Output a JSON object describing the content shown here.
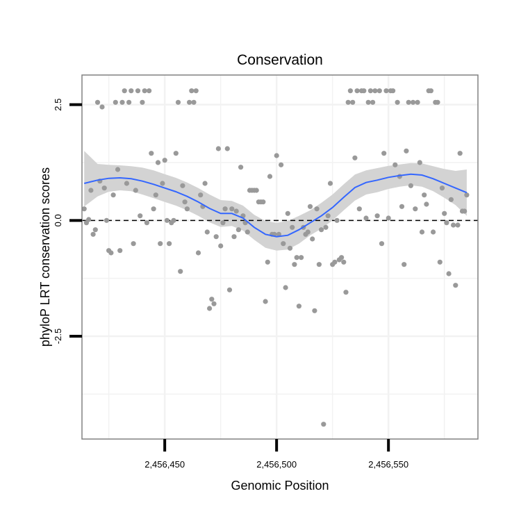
{
  "chart_data": {
    "type": "scatter",
    "title": "Conservation",
    "xlabel": "Genomic Position",
    "ylabel": "phyloP LRT conservation scores",
    "xlim": [
      2456413,
      2456590
    ],
    "ylim": [
      -4.72,
      3.14
    ],
    "x_ticks": [
      2456450,
      2456500,
      2456550
    ],
    "x_tick_labels": [
      "2,456,450",
      "2,456,500",
      "2,456,550"
    ],
    "y_ticks": [
      -2.5,
      0.0,
      2.5
    ],
    "y_tick_labels": [
      "-2.5",
      "0.0",
      "2.5"
    ],
    "x_minor_grid": [
      2456425,
      2456475,
      2456525,
      2456575
    ],
    "y_minor_grid": [
      -3.75,
      -1.25,
      1.25
    ],
    "grid": true,
    "reference_line": {
      "y": 0,
      "style": "dashed",
      "color": "#000000"
    },
    "colors": {
      "points": "#999999",
      "smooth_line": "#3366FF",
      "confidence_band": "#D3D3D3",
      "panel_border": "#808080",
      "grid": "#F2F2F2"
    },
    "points": [
      [
        2456414,
        0.25
      ],
      [
        2456415,
        -0.05
      ],
      [
        2456416,
        0.02
      ],
      [
        2456417,
        0.65
      ],
      [
        2456418,
        -0.3
      ],
      [
        2456419,
        -0.2
      ],
      [
        2456420,
        2.55
      ],
      [
        2456421,
        0.85
      ],
      [
        2456422,
        2.45
      ],
      [
        2456423,
        0.7
      ],
      [
        2456424,
        0.0
      ],
      [
        2456425,
        -0.65
      ],
      [
        2456426,
        -0.7
      ],
      [
        2456427,
        0.55
      ],
      [
        2456428,
        2.55
      ],
      [
        2456429,
        1.1
      ],
      [
        2456430,
        -0.65
      ],
      [
        2456431,
        2.55
      ],
      [
        2456432,
        2.8
      ],
      [
        2456433,
        0.8
      ],
      [
        2456434,
        2.55
      ],
      [
        2456435,
        2.8
      ],
      [
        2456436,
        -0.5
      ],
      [
        2456437,
        0.65
      ],
      [
        2456438,
        2.8
      ],
      [
        2456439,
        0.1
      ],
      [
        2456440,
        2.55
      ],
      [
        2456441,
        2.8
      ],
      [
        2456442,
        -0.05
      ],
      [
        2456443,
        2.8
      ],
      [
        2456444,
        1.45
      ],
      [
        2456445,
        0.25
      ],
      [
        2456446,
        0.55
      ],
      [
        2456447,
        1.25
      ],
      [
        2456448,
        -0.5
      ],
      [
        2456449,
        0.8
      ],
      [
        2456450,
        1.3
      ],
      [
        2456451,
        0.0
      ],
      [
        2456452,
        -0.5
      ],
      [
        2456453,
        -0.05
      ],
      [
        2456454,
        0.0
      ],
      [
        2456455,
        1.45
      ],
      [
        2456456,
        2.55
      ],
      [
        2456457,
        -1.1
      ],
      [
        2456458,
        0.75
      ],
      [
        2456459,
        0.4
      ],
      [
        2456460,
        0.25
      ],
      [
        2456461,
        2.55
      ],
      [
        2456462,
        2.8
      ],
      [
        2456463,
        2.55
      ],
      [
        2456464,
        2.8
      ],
      [
        2456465,
        -0.7
      ],
      [
        2456466,
        0.55
      ],
      [
        2456467,
        0.3
      ],
      [
        2456468,
        0.8
      ],
      [
        2456469,
        -0.25
      ],
      [
        2456470,
        -1.9
      ],
      [
        2456471,
        -1.7
      ],
      [
        2456472,
        -1.8
      ],
      [
        2456473,
        -0.35
      ],
      [
        2456474,
        1.55
      ],
      [
        2456475,
        -0.55
      ],
      [
        2456476,
        -0.05
      ],
      [
        2456477,
        0.25
      ],
      [
        2456478,
        1.55
      ],
      [
        2456479,
        -1.5
      ],
      [
        2456480,
        0.25
      ],
      [
        2456481,
        -0.35
      ],
      [
        2456482,
        0.2
      ],
      [
        2456483,
        -0.2
      ],
      [
        2456484,
        1.15
      ],
      [
        2456485,
        0.1
      ],
      [
        2456486,
        -0.05
      ],
      [
        2456487,
        -0.25
      ],
      [
        2456488,
        0.65
      ],
      [
        2456489,
        0.65
      ],
      [
        2456490,
        0.65
      ],
      [
        2456491,
        0.65
      ],
      [
        2456492,
        0.4
      ],
      [
        2456493,
        0.4
      ],
      [
        2456494,
        0.4
      ],
      [
        2456495,
        -1.75
      ],
      [
        2456496,
        -0.9
      ],
      [
        2456497,
        0.95
      ],
      [
        2456498,
        -0.3
      ],
      [
        2456499,
        -0.3
      ],
      [
        2456500,
        1.4
      ],
      [
        2456501,
        -0.3
      ],
      [
        2456502,
        1.2
      ],
      [
        2456503,
        -0.5
      ],
      [
        2456504,
        -1.45
      ],
      [
        2456505,
        0.15
      ],
      [
        2456506,
        -0.6
      ],
      [
        2456507,
        -0.15
      ],
      [
        2456508,
        -0.95
      ],
      [
        2456509,
        -0.8
      ],
      [
        2456510,
        -1.85
      ],
      [
        2456511,
        -0.8
      ],
      [
        2456512,
        -0.15
      ],
      [
        2456513,
        -0.3
      ],
      [
        2456514,
        -0.25
      ],
      [
        2456515,
        0.3
      ],
      [
        2456516,
        -0.4
      ],
      [
        2456517,
        -1.95
      ],
      [
        2456518,
        0.25
      ],
      [
        2456519,
        -0.95
      ],
      [
        2456520,
        -0.2
      ],
      [
        2456521,
        -4.4
      ],
      [
        2456522,
        -0.15
      ],
      [
        2456523,
        0.1
      ],
      [
        2456524,
        0.8
      ],
      [
        2456525,
        -0.95
      ],
      [
        2456526,
        -0.9
      ],
      [
        2456527,
        0.0
      ],
      [
        2456528,
        -0.85
      ],
      [
        2456529,
        -0.8
      ],
      [
        2456530,
        -0.9
      ],
      [
        2456531,
        -1.55
      ],
      [
        2456532,
        2.55
      ],
      [
        2456533,
        2.8
      ],
      [
        2456534,
        2.55
      ],
      [
        2456535,
        1.35
      ],
      [
        2456536,
        2.8
      ],
      [
        2456537,
        0.25
      ],
      [
        2456538,
        2.8
      ],
      [
        2456539,
        2.8
      ],
      [
        2456540,
        0.05
      ],
      [
        2456541,
        2.55
      ],
      [
        2456542,
        2.8
      ],
      [
        2456543,
        2.55
      ],
      [
        2456544,
        2.8
      ],
      [
        2456545,
        0.1
      ],
      [
        2456546,
        2.8
      ],
      [
        2456547,
        -0.5
      ],
      [
        2456548,
        1.45
      ],
      [
        2456549,
        2.8
      ],
      [
        2456550,
        0.05
      ],
      [
        2456551,
        2.8
      ],
      [
        2456552,
        2.8
      ],
      [
        2456553,
        1.2
      ],
      [
        2456554,
        2.55
      ],
      [
        2456555,
        0.95
      ],
      [
        2456556,
        0.3
      ],
      [
        2456557,
        -0.95
      ],
      [
        2456558,
        1.5
      ],
      [
        2456559,
        2.55
      ],
      [
        2456560,
        0.75
      ],
      [
        2456561,
        2.55
      ],
      [
        2456562,
        0.25
      ],
      [
        2456563,
        2.55
      ],
      [
        2456564,
        1.25
      ],
      [
        2456565,
        -0.25
      ],
      [
        2456566,
        0.55
      ],
      [
        2456567,
        0.35
      ],
      [
        2456568,
        2.8
      ],
      [
        2456569,
        2.8
      ],
      [
        2456570,
        -0.25
      ],
      [
        2456571,
        2.55
      ],
      [
        2456572,
        2.55
      ],
      [
        2456573,
        -0.9
      ],
      [
        2456574,
        0.7
      ],
      [
        2456575,
        0.15
      ],
      [
        2456576,
        -0.05
      ],
      [
        2456577,
        -1.15
      ],
      [
        2456578,
        0.45
      ],
      [
        2456579,
        -0.1
      ],
      [
        2456580,
        -1.4
      ],
      [
        2456581,
        -0.1
      ],
      [
        2456582,
        1.45
      ],
      [
        2456583,
        0.2
      ],
      [
        2456584,
        0.2
      ],
      [
        2456585,
        0.55
      ]
    ],
    "smooth": {
      "x": [
        2456414,
        2456420,
        2456425,
        2456430,
        2456435,
        2456440,
        2456445,
        2456450,
        2456455,
        2456460,
        2456465,
        2456470,
        2456475,
        2456480,
        2456485,
        2456490,
        2456495,
        2456500,
        2456505,
        2456510,
        2456515,
        2456520,
        2456525,
        2456530,
        2456535,
        2456540,
        2456545,
        2456550,
        2456555,
        2456560,
        2456565,
        2456570,
        2456575,
        2456580,
        2456585
      ],
      "y": [
        0.8,
        0.87,
        0.91,
        0.92,
        0.9,
        0.85,
        0.78,
        0.7,
        0.62,
        0.52,
        0.4,
        0.26,
        0.15,
        0.15,
        0.05,
        -0.15,
        -0.3,
        -0.35,
        -0.32,
        -0.2,
        -0.05,
        0.1,
        0.28,
        0.5,
        0.71,
        0.82,
        0.87,
        0.93,
        0.97,
        1.0,
        0.98,
        0.9,
        0.8,
        0.7,
        0.6
      ],
      "lower": [
        0.3,
        0.52,
        0.62,
        0.65,
        0.63,
        0.56,
        0.48,
        0.4,
        0.32,
        0.22,
        0.1,
        -0.04,
        -0.14,
        -0.12,
        -0.22,
        -0.42,
        -0.59,
        -0.65,
        -0.63,
        -0.5,
        -0.32,
        -0.18,
        0.0,
        0.22,
        0.43,
        0.56,
        0.61,
        0.68,
        0.73,
        0.76,
        0.73,
        0.63,
        0.49,
        0.33,
        0.1
      ],
      "upper": [
        1.5,
        1.22,
        1.2,
        1.19,
        1.17,
        1.14,
        1.08,
        1.0,
        0.92,
        0.82,
        0.7,
        0.56,
        0.44,
        0.42,
        0.32,
        0.12,
        -0.01,
        -0.05,
        -0.01,
        0.1,
        0.22,
        0.38,
        0.56,
        0.78,
        0.99,
        1.08,
        1.13,
        1.18,
        1.21,
        1.24,
        1.23,
        1.17,
        1.11,
        1.07,
        1.1
      ]
    }
  }
}
